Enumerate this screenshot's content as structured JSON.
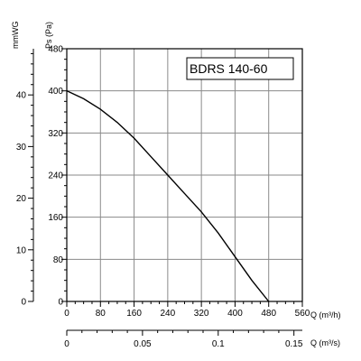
{
  "chart_data": {
    "type": "line",
    "title": "BDRS 140-60",
    "y_pa": {
      "label": "Ps (Pa)",
      "range": [
        0,
        480
      ],
      "ticks": [
        0,
        80,
        160,
        240,
        320,
        400,
        480
      ]
    },
    "y_mmwg": {
      "label": "mmWG",
      "ticks": [
        0,
        10,
        20,
        30,
        40
      ]
    },
    "x_m3h": {
      "label": "Q (m³/h)",
      "range": [
        0,
        560
      ],
      "ticks": [
        0,
        80,
        160,
        240,
        320,
        400,
        480,
        560
      ]
    },
    "x_m3s": {
      "label": "Q (m³/s)",
      "ticks": [
        "0",
        "0.05",
        "0.1",
        "0.15"
      ],
      "tick_values": [
        0,
        0.05,
        0.1,
        0.15
      ]
    },
    "grid": true,
    "series": [
      {
        "x": [
          0,
          40,
          80,
          120,
          160,
          200,
          240,
          280,
          320,
          360,
          400,
          440,
          480
        ],
        "y": [
          400,
          385,
          365,
          340,
          310,
          275,
          240,
          205,
          170,
          130,
          85,
          40,
          0
        ]
      }
    ]
  }
}
